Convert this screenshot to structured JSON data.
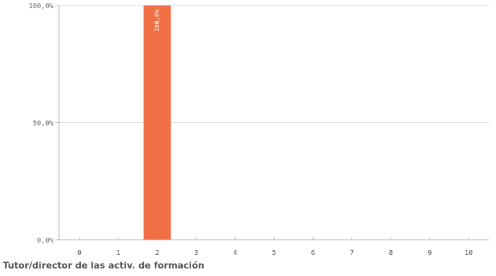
{
  "chart_data": {
    "type": "bar",
    "categories": [
      "0",
      "1",
      "2",
      "3",
      "4",
      "5",
      "6",
      "7",
      "8",
      "9",
      "10"
    ],
    "values": [
      0,
      0,
      100,
      0,
      0,
      0,
      0,
      0,
      0,
      0,
      0
    ],
    "data_labels": [
      "",
      "",
      "100,0%",
      "",
      "",
      "",
      "",
      "",
      "",
      "",
      ""
    ],
    "xlabel": "Tutor/director de las activ. de formación",
    "ylabel": "",
    "ylim": [
      0,
      100
    ],
    "yticks": [
      {
        "value": 0,
        "label": "0,0%"
      },
      {
        "value": 50,
        "label": "50,0%"
      },
      {
        "value": 100,
        "label": "100,0%"
      }
    ],
    "grid": true,
    "bar_color": "#f26f45"
  }
}
